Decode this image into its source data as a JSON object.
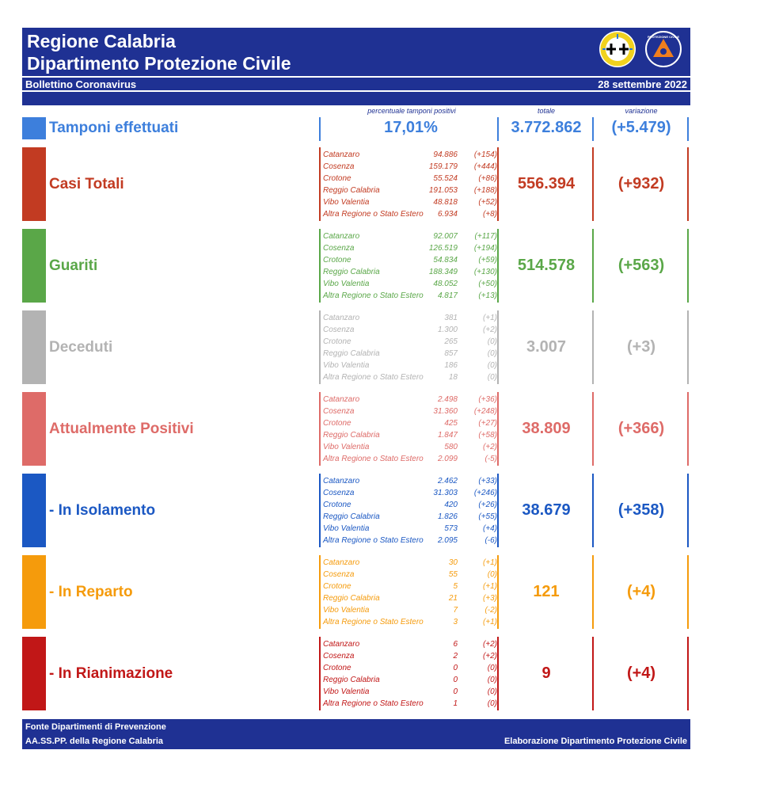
{
  "header": {
    "title_line1": "Regione Calabria",
    "title_line2": "Dipartimento Protezione Civile",
    "subtitle": "Bollettino Coronavirus",
    "date": "28 settembre 2022",
    "logo_pc_text": "PROTEZIONE CIVILE",
    "brand_color": "#1f3193"
  },
  "column_headers": {
    "percent": "percentuale tamponi positivi",
    "total": "totale",
    "variation": "variazione"
  },
  "tamponi": {
    "label": "Tamponi effettuati",
    "percent": "17,01%",
    "total": "3.772.862",
    "delta": "(+5.479)",
    "color": "#3d7fdc"
  },
  "sections": [
    {
      "label": "Casi Totali",
      "color": "#c23b22",
      "total": "556.394",
      "delta": "(+932)",
      "provinces": [
        {
          "name": "Catanzaro",
          "value": "94.886",
          "delta": "(+154)"
        },
        {
          "name": "Cosenza",
          "value": "159.179",
          "delta": "(+444)"
        },
        {
          "name": "Crotone",
          "value": "55.524",
          "delta": "(+86)"
        },
        {
          "name": "Reggio Calabria",
          "value": "191.053",
          "delta": "(+188)"
        },
        {
          "name": "Vibo Valentia",
          "value": "48.818",
          "delta": "(+52)"
        },
        {
          "name": "Altra Regione o Stato Estero",
          "value": "6.934",
          "delta": "(+8)"
        }
      ]
    },
    {
      "label": "Guariti",
      "color": "#5aa748",
      "total": "514.578",
      "delta": "(+563)",
      "provinces": [
        {
          "name": "Catanzaro",
          "value": "92.007",
          "delta": "(+117)"
        },
        {
          "name": "Cosenza",
          "value": "126.519",
          "delta": "(+194)"
        },
        {
          "name": "Crotone",
          "value": "54.834",
          "delta": "(+59)"
        },
        {
          "name": "Reggio Calabria",
          "value": "188.349",
          "delta": "(+130)"
        },
        {
          "name": "Vibo Valentia",
          "value": "48.052",
          "delta": "(+50)"
        },
        {
          "name": "Altra Regione o Stato Estero",
          "value": "4.817",
          "delta": "(+13)"
        }
      ]
    },
    {
      "label": "Deceduti",
      "color": "#b3b3b3",
      "total": "3.007",
      "delta": "(+3)",
      "provinces": [
        {
          "name": "Catanzaro",
          "value": "381",
          "delta": "(+1)"
        },
        {
          "name": "Cosenza",
          "value": "1.300",
          "delta": "(+2)"
        },
        {
          "name": "Crotone",
          "value": "265",
          "delta": "(0)"
        },
        {
          "name": "Reggio Calabria",
          "value": "857",
          "delta": "(0)"
        },
        {
          "name": "Vibo Valentia",
          "value": "186",
          "delta": "(0)"
        },
        {
          "name": "Altra Regione o Stato Estero",
          "value": "18",
          "delta": "(0)"
        }
      ]
    },
    {
      "label": "Attualmente Positivi",
      "color": "#de6b68",
      "total": "38.809",
      "delta": "(+366)",
      "provinces": [
        {
          "name": "Catanzaro",
          "value": "2.498",
          "delta": "(+36)"
        },
        {
          "name": "Cosenza",
          "value": "31.360",
          "delta": "(+248)"
        },
        {
          "name": "Crotone",
          "value": "425",
          "delta": "(+27)"
        },
        {
          "name": "Reggio Calabria",
          "value": "1.847",
          "delta": "(+58)"
        },
        {
          "name": "Vibo Valentia",
          "value": "580",
          "delta": "(+2)"
        },
        {
          "name": "Altra Regione o Stato Estero",
          "value": "2.099",
          "delta": "(-5)"
        }
      ]
    },
    {
      "label": "- In Isolamento",
      "color": "#1b58c3",
      "total": "38.679",
      "delta": "(+358)",
      "provinces": [
        {
          "name": "Catanzaro",
          "value": "2.462",
          "delta": "(+33)"
        },
        {
          "name": "Cosenza",
          "value": "31.303",
          "delta": "(+246)"
        },
        {
          "name": "Crotone",
          "value": "420",
          "delta": "(+26)"
        },
        {
          "name": "Reggio Calabria",
          "value": "1.826",
          "delta": "(+55)"
        },
        {
          "name": "Vibo Valentia",
          "value": "573",
          "delta": "(+4)"
        },
        {
          "name": "Altra Regione o Stato Estero",
          "value": "2.095",
          "delta": "(-6)"
        }
      ]
    },
    {
      "label": "- In Reparto",
      "color": "#f59b0c",
      "total": "121",
      "delta": "(+4)",
      "provinces": [
        {
          "name": "Catanzaro",
          "value": "30",
          "delta": "(+1)"
        },
        {
          "name": "Cosenza",
          "value": "55",
          "delta": "(0)"
        },
        {
          "name": "Crotone",
          "value": "5",
          "delta": "(+1)"
        },
        {
          "name": "Reggio Calabria",
          "value": "21",
          "delta": "(+3)"
        },
        {
          "name": "Vibo Valentia",
          "value": "7",
          "delta": "(-2)"
        },
        {
          "name": "Altra Regione o Stato Estero",
          "value": "3",
          "delta": "(+1)"
        }
      ]
    },
    {
      "label": "- In Rianimazione",
      "color": "#c11717",
      "total": "9",
      "delta": "(+4)",
      "provinces": [
        {
          "name": "Catanzaro",
          "value": "6",
          "delta": "(+2)"
        },
        {
          "name": "Cosenza",
          "value": "2",
          "delta": "(+2)"
        },
        {
          "name": "Crotone",
          "value": "0",
          "delta": "(0)"
        },
        {
          "name": "Reggio Calabria",
          "value": "0",
          "delta": "(0)"
        },
        {
          "name": "Vibo Valentia",
          "value": "0",
          "delta": "(0)"
        },
        {
          "name": "Altra Regione o Stato Estero",
          "value": "1",
          "delta": "(0)"
        }
      ]
    }
  ],
  "footer": {
    "line1": "Fonte Dipartimenti di Prevenzione",
    "line2": "AA.SS.PP.  della Regione Calabria",
    "right": "Elaborazione Dipartimento Protezione Civile"
  }
}
